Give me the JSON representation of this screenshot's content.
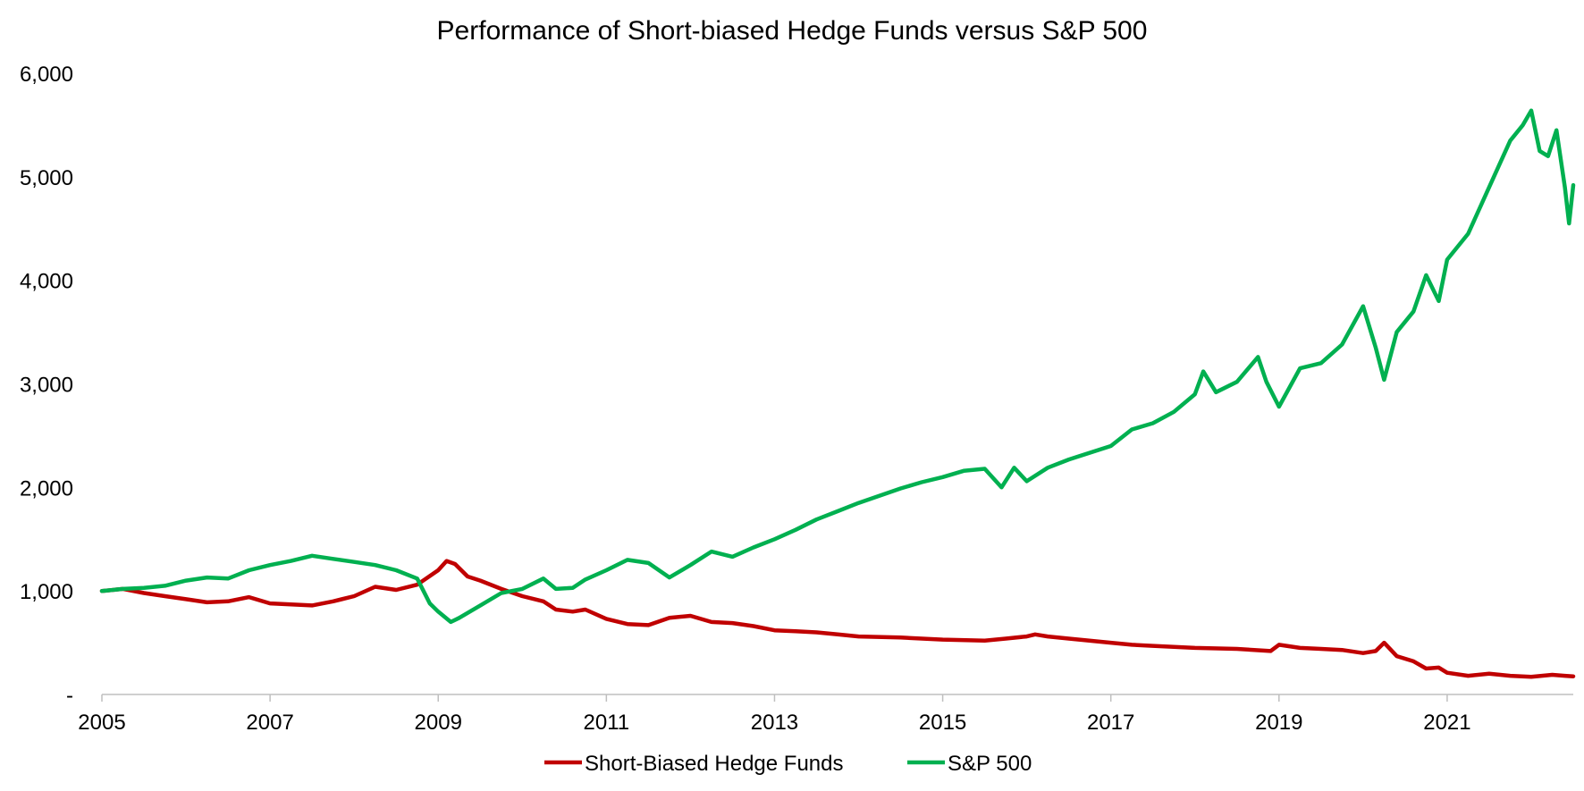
{
  "chart_data": {
    "type": "line",
    "title": "Performance of Short-biased Hedge Funds versus S&P 500",
    "xlabel": "",
    "ylabel": "",
    "xlim": [
      2005.0,
      2022.5
    ],
    "ylim": [
      0,
      6000
    ],
    "x_ticks": [
      2005,
      2007,
      2009,
      2011,
      2013,
      2015,
      2017,
      2019,
      2021
    ],
    "x_tick_labels": [
      "2005",
      "2007",
      "2009",
      "2011",
      "2013",
      "2015",
      "2017",
      "2019",
      "2021"
    ],
    "y_ticks": [
      0,
      1000,
      2000,
      3000,
      4000,
      5000,
      6000
    ],
    "y_tick_labels": [
      "-",
      "1,000",
      "2,000",
      "3,000",
      "4,000",
      "5,000",
      "6,000"
    ],
    "grid": false,
    "legend_position": "bottom",
    "series": [
      {
        "name": "Short-Biased Hedge Funds",
        "color": "#C00000",
        "points": [
          [
            2005.0,
            1000
          ],
          [
            2005.25,
            1020
          ],
          [
            2005.5,
            980
          ],
          [
            2005.75,
            950
          ],
          [
            2006.0,
            920
          ],
          [
            2006.25,
            890
          ],
          [
            2006.5,
            900
          ],
          [
            2006.75,
            940
          ],
          [
            2007.0,
            880
          ],
          [
            2007.25,
            870
          ],
          [
            2007.5,
            860
          ],
          [
            2007.75,
            900
          ],
          [
            2008.0,
            950
          ],
          [
            2008.25,
            1040
          ],
          [
            2008.5,
            1010
          ],
          [
            2008.75,
            1060
          ],
          [
            2009.0,
            1200
          ],
          [
            2009.1,
            1290
          ],
          [
            2009.2,
            1260
          ],
          [
            2009.35,
            1140
          ],
          [
            2009.5,
            1100
          ],
          [
            2009.75,
            1020
          ],
          [
            2010.0,
            950
          ],
          [
            2010.25,
            900
          ],
          [
            2010.4,
            820
          ],
          [
            2010.6,
            800
          ],
          [
            2010.75,
            820
          ],
          [
            2011.0,
            730
          ],
          [
            2011.25,
            680
          ],
          [
            2011.5,
            670
          ],
          [
            2011.75,
            740
          ],
          [
            2012.0,
            760
          ],
          [
            2012.25,
            700
          ],
          [
            2012.5,
            690
          ],
          [
            2012.75,
            660
          ],
          [
            2013.0,
            620
          ],
          [
            2013.25,
            610
          ],
          [
            2013.5,
            600
          ],
          [
            2013.75,
            580
          ],
          [
            2014.0,
            560
          ],
          [
            2014.5,
            550
          ],
          [
            2015.0,
            530
          ],
          [
            2015.5,
            520
          ],
          [
            2015.75,
            540
          ],
          [
            2016.0,
            560
          ],
          [
            2016.1,
            580
          ],
          [
            2016.25,
            560
          ],
          [
            2016.5,
            540
          ],
          [
            2017.0,
            500
          ],
          [
            2017.25,
            480
          ],
          [
            2017.5,
            470
          ],
          [
            2017.75,
            460
          ],
          [
            2018.0,
            450
          ],
          [
            2018.5,
            440
          ],
          [
            2018.9,
            420
          ],
          [
            2019.0,
            480
          ],
          [
            2019.25,
            450
          ],
          [
            2019.5,
            440
          ],
          [
            2019.75,
            430
          ],
          [
            2020.0,
            400
          ],
          [
            2020.15,
            420
          ],
          [
            2020.25,
            500
          ],
          [
            2020.4,
            370
          ],
          [
            2020.6,
            320
          ],
          [
            2020.75,
            250
          ],
          [
            2020.9,
            260
          ],
          [
            2021.0,
            210
          ],
          [
            2021.25,
            180
          ],
          [
            2021.5,
            200
          ],
          [
            2021.75,
            180
          ],
          [
            2022.0,
            170
          ],
          [
            2022.25,
            190
          ],
          [
            2022.4,
            180
          ],
          [
            2022.5,
            175
          ]
        ]
      },
      {
        "name": "S&P 500",
        "color": "#00B050",
        "points": [
          [
            2005.0,
            1000
          ],
          [
            2005.25,
            1020
          ],
          [
            2005.5,
            1030
          ],
          [
            2005.75,
            1050
          ],
          [
            2006.0,
            1100
          ],
          [
            2006.25,
            1130
          ],
          [
            2006.5,
            1120
          ],
          [
            2006.75,
            1200
          ],
          [
            2007.0,
            1250
          ],
          [
            2007.25,
            1290
          ],
          [
            2007.5,
            1340
          ],
          [
            2007.75,
            1310
          ],
          [
            2008.0,
            1280
          ],
          [
            2008.25,
            1250
          ],
          [
            2008.5,
            1200
          ],
          [
            2008.75,
            1120
          ],
          [
            2008.9,
            880
          ],
          [
            2009.0,
            800
          ],
          [
            2009.15,
            700
          ],
          [
            2009.25,
            740
          ],
          [
            2009.5,
            860
          ],
          [
            2009.75,
            980
          ],
          [
            2010.0,
            1020
          ],
          [
            2010.25,
            1120
          ],
          [
            2010.4,
            1020
          ],
          [
            2010.6,
            1030
          ],
          [
            2010.75,
            1110
          ],
          [
            2011.0,
            1200
          ],
          [
            2011.25,
            1300
          ],
          [
            2011.5,
            1270
          ],
          [
            2011.75,
            1130
          ],
          [
            2012.0,
            1250
          ],
          [
            2012.25,
            1380
          ],
          [
            2012.5,
            1330
          ],
          [
            2012.75,
            1420
          ],
          [
            2013.0,
            1500
          ],
          [
            2013.25,
            1590
          ],
          [
            2013.5,
            1690
          ],
          [
            2013.75,
            1770
          ],
          [
            2014.0,
            1850
          ],
          [
            2014.5,
            1990
          ],
          [
            2014.75,
            2050
          ],
          [
            2015.0,
            2100
          ],
          [
            2015.25,
            2160
          ],
          [
            2015.5,
            2180
          ],
          [
            2015.7,
            2000
          ],
          [
            2015.85,
            2190
          ],
          [
            2016.0,
            2060
          ],
          [
            2016.25,
            2190
          ],
          [
            2016.5,
            2270
          ],
          [
            2017.0,
            2400
          ],
          [
            2017.25,
            2560
          ],
          [
            2017.5,
            2620
          ],
          [
            2017.75,
            2730
          ],
          [
            2018.0,
            2900
          ],
          [
            2018.1,
            3120
          ],
          [
            2018.25,
            2920
          ],
          [
            2018.5,
            3020
          ],
          [
            2018.75,
            3260
          ],
          [
            2018.85,
            3020
          ],
          [
            2019.0,
            2780
          ],
          [
            2019.25,
            3150
          ],
          [
            2019.5,
            3200
          ],
          [
            2019.75,
            3380
          ],
          [
            2020.0,
            3750
          ],
          [
            2020.15,
            3350
          ],
          [
            2020.25,
            3040
          ],
          [
            2020.4,
            3500
          ],
          [
            2020.6,
            3700
          ],
          [
            2020.75,
            4050
          ],
          [
            2020.9,
            3800
          ],
          [
            2021.0,
            4200
          ],
          [
            2021.25,
            4450
          ],
          [
            2021.5,
            4900
          ],
          [
            2021.75,
            5350
          ],
          [
            2021.9,
            5500
          ],
          [
            2022.0,
            5640
          ],
          [
            2022.1,
            5250
          ],
          [
            2022.2,
            5200
          ],
          [
            2022.3,
            5450
          ],
          [
            2022.4,
            4900
          ],
          [
            2022.45,
            4550
          ],
          [
            2022.5,
            4920
          ]
        ]
      }
    ]
  }
}
